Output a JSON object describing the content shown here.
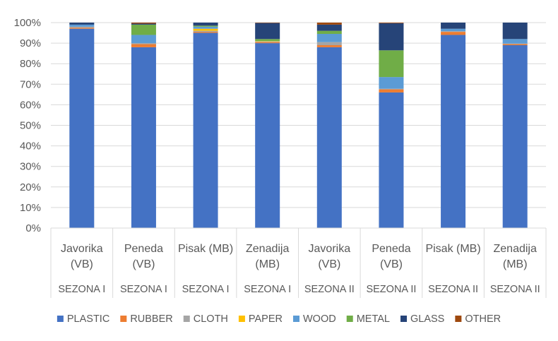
{
  "chart_data": {
    "type": "bar",
    "stacked": "percent",
    "categories": [
      {
        "label_lines": [
          "Javorika",
          "(VB)"
        ],
        "group": "SEZONA I"
      },
      {
        "label_lines": [
          "Peneda",
          "(VB)"
        ],
        "group": "SEZONA I"
      },
      {
        "label_lines": [
          "Pisak (MB)"
        ],
        "group": "SEZONA I"
      },
      {
        "label_lines": [
          "Zenadija",
          "(MB)"
        ],
        "group": "SEZONA I"
      },
      {
        "label_lines": [
          "Javorika",
          "(VB)"
        ],
        "group": "SEZONA II"
      },
      {
        "label_lines": [
          "Peneda",
          "(VB)"
        ],
        "group": "SEZONA II"
      },
      {
        "label_lines": [
          "Pisak (MB)"
        ],
        "group": "SEZONA II"
      },
      {
        "label_lines": [
          "Zenadija",
          "(MB)"
        ],
        "group": "SEZONA II"
      }
    ],
    "series": [
      {
        "name": "PLASTIC",
        "color": "#4472C4",
        "values": [
          97,
          88,
          95,
          90,
          88,
          66,
          94,
          89
        ]
      },
      {
        "name": "RUBBER",
        "color": "#ED7D31",
        "values": [
          0.5,
          1.5,
          0.5,
          0.5,
          1,
          1.5,
          1.5,
          0.5
        ]
      },
      {
        "name": "CLOTH",
        "color": "#A5A5A5",
        "values": [
          0.5,
          0.5,
          0.5,
          0.3,
          1.5,
          0.3,
          0.3,
          0.3
        ]
      },
      {
        "name": "PAPER",
        "color": "#FFC000",
        "values": [
          0,
          0,
          1,
          0.2,
          0,
          0,
          0,
          0
        ]
      },
      {
        "name": "WOOD",
        "color": "#5B9BD5",
        "values": [
          1,
          4,
          1,
          0,
          4,
          5.7,
          1.2,
          2.2
        ]
      },
      {
        "name": "METAL",
        "color": "#70AD47",
        "values": [
          0,
          5,
          0.5,
          1,
          1.5,
          13,
          0,
          0
        ]
      },
      {
        "name": "GLASS",
        "color": "#264478",
        "values": [
          1,
          0.5,
          1.5,
          7.8,
          3,
          13.2,
          3,
          8
        ]
      },
      {
        "name": "OTHER",
        "color": "#9E480E",
        "values": [
          0,
          0.5,
          0,
          0.2,
          1,
          0.3,
          0,
          0
        ]
      }
    ],
    "yaxis": {
      "ticks": [
        "0%",
        "10%",
        "20%",
        "30%",
        "40%",
        "50%",
        "60%",
        "70%",
        "80%",
        "90%",
        "100%"
      ],
      "ylim": [
        0,
        100
      ]
    },
    "grid": true,
    "legend": "bottom"
  }
}
